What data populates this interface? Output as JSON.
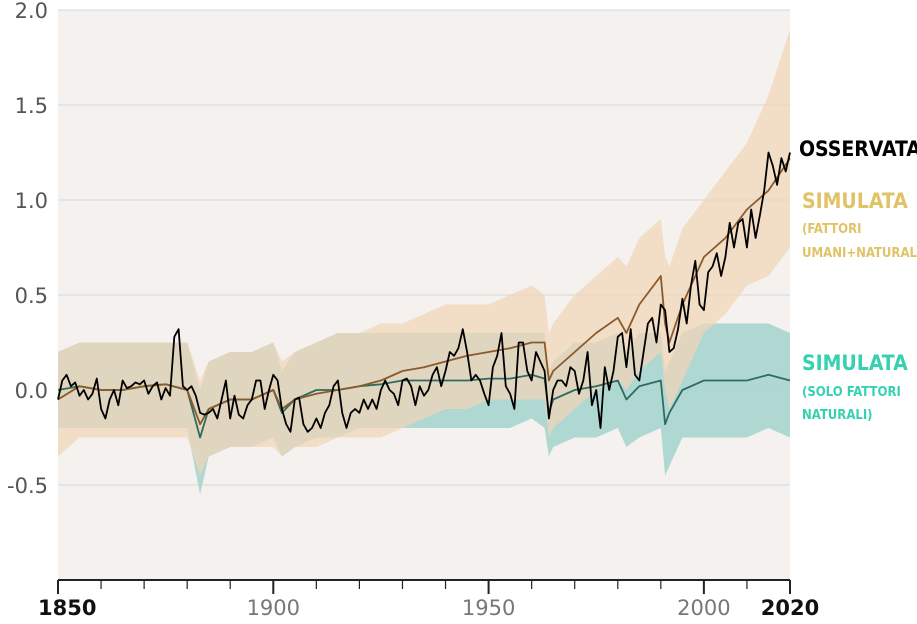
{
  "chart_data": {
    "type": "area",
    "xlim": [
      1850,
      2020
    ],
    "ylim": [
      -1.0,
      2.0
    ],
    "yticks": [
      2.0,
      1.5,
      1.0,
      0.5,
      0.0,
      -0.5
    ],
    "ytick_labels": [
      "2.0",
      "1.5",
      "1.0",
      "0.5",
      "0.0",
      "-0.5"
    ],
    "xticks": [
      1850,
      1900,
      1950,
      2000,
      2020
    ],
    "xtick_labels": [
      "1850",
      "1900",
      "1950",
      "2000",
      "2020"
    ],
    "grid": true,
    "legend_placement": "right, inline labels",
    "series": [
      {
        "name": "OSSERVATA",
        "color": "#000000",
        "x": [
          1850,
          1851,
          1852,
          1853,
          1854,
          1855,
          1856,
          1857,
          1858,
          1859,
          1860,
          1861,
          1862,
          1863,
          1864,
          1865,
          1866,
          1867,
          1868,
          1869,
          1870,
          1871,
          1872,
          1873,
          1874,
          1875,
          1876,
          1877,
          1878,
          1879,
          1880,
          1881,
          1882,
          1883,
          1884,
          1885,
          1886,
          1887,
          1888,
          1889,
          1890,
          1891,
          1892,
          1893,
          1894,
          1895,
          1896,
          1897,
          1898,
          1899,
          1900,
          1901,
          1902,
          1903,
          1904,
          1905,
          1906,
          1907,
          1908,
          1909,
          1910,
          1911,
          1912,
          1913,
          1914,
          1915,
          1916,
          1917,
          1918,
          1919,
          1920,
          1921,
          1922,
          1923,
          1924,
          1925,
          1926,
          1927,
          1928,
          1929,
          1930,
          1931,
          1932,
          1933,
          1934,
          1935,
          1936,
          1937,
          1938,
          1939,
          1940,
          1941,
          1942,
          1943,
          1944,
          1945,
          1946,
          1947,
          1948,
          1949,
          1950,
          1951,
          1952,
          1953,
          1954,
          1955,
          1956,
          1957,
          1958,
          1959,
          1960,
          1961,
          1962,
          1963,
          1964,
          1965,
          1966,
          1967,
          1968,
          1969,
          1970,
          1971,
          1972,
          1973,
          1974,
          1975,
          1976,
          1977,
          1978,
          1979,
          1980,
          1981,
          1982,
          1983,
          1984,
          1985,
          1986,
          1987,
          1988,
          1989,
          1990,
          1991,
          1992,
          1993,
          1994,
          1995,
          1996,
          1997,
          1998,
          1999,
          2000,
          2001,
          2002,
          2003,
          2004,
          2005,
          2006,
          2007,
          2008,
          2009,
          2010,
          2011,
          2012,
          2013,
          2014,
          2015,
          2016,
          2017,
          2018,
          2019,
          2020
        ],
        "y": [
          -0.05,
          0.05,
          0.08,
          0.02,
          0.04,
          -0.03,
          0.0,
          -0.05,
          -0.02,
          0.06,
          -0.1,
          -0.15,
          -0.05,
          0.0,
          -0.08,
          0.05,
          0.01,
          0.02,
          0.04,
          0.03,
          0.05,
          -0.02,
          0.02,
          0.04,
          -0.05,
          0.01,
          -0.03,
          0.28,
          0.32,
          0.02,
          0.0,
          0.02,
          -0.03,
          -0.12,
          -0.13,
          -0.12,
          -0.1,
          -0.15,
          -0.05,
          0.05,
          -0.15,
          -0.03,
          -0.13,
          -0.15,
          -0.08,
          -0.05,
          0.05,
          0.05,
          -0.1,
          0.0,
          0.08,
          0.05,
          -0.1,
          -0.18,
          -0.22,
          -0.05,
          -0.04,
          -0.18,
          -0.22,
          -0.2,
          -0.15,
          -0.2,
          -0.12,
          -0.08,
          0.02,
          0.05,
          -0.12,
          -0.2,
          -0.12,
          -0.1,
          -0.12,
          -0.05,
          -0.1,
          -0.05,
          -0.1,
          0.0,
          0.05,
          0.0,
          -0.02,
          -0.08,
          0.05,
          0.06,
          0.02,
          -0.08,
          0.02,
          -0.03,
          0.0,
          0.08,
          0.12,
          0.02,
          0.1,
          0.2,
          0.18,
          0.22,
          0.32,
          0.2,
          0.05,
          0.08,
          0.05,
          -0.02,
          -0.08,
          0.12,
          0.18,
          0.3,
          0.02,
          -0.02,
          -0.1,
          0.25,
          0.25,
          0.1,
          0.05,
          0.2,
          0.15,
          0.1,
          -0.15,
          0.0,
          0.05,
          0.05,
          0.02,
          0.12,
          0.1,
          -0.02,
          0.05,
          0.2,
          -0.08,
          0.0,
          -0.2,
          0.12,
          0.0,
          0.1,
          0.28,
          0.3,
          0.12,
          0.32,
          0.08,
          0.05,
          0.2,
          0.35,
          0.38,
          0.25,
          0.45,
          0.42,
          0.2,
          0.22,
          0.32,
          0.48,
          0.35,
          0.55,
          0.68,
          0.45,
          0.42,
          0.62,
          0.65,
          0.72,
          0.6,
          0.7,
          0.88,
          0.75,
          0.88,
          0.9,
          0.75,
          0.95,
          0.8,
          0.92,
          1.05,
          1.25,
          1.18,
          1.08,
          1.22,
          1.15,
          1.25
        ]
      },
      {
        "name": "SIMULATA (FATTORI UMANI+NATURALI)",
        "label_line1": "SIMULATA",
        "label_line2": "(FATTORI",
        "label_line3": "UMANI+NATURALI)",
        "line_color": "#8b5a2b",
        "band_color": "#f0d5b8",
        "label_color": "#e0c366",
        "x": [
          1850,
          1855,
          1860,
          1865,
          1870,
          1875,
          1880,
          1883,
          1885,
          1890,
          1895,
          1900,
          1902,
          1905,
          1910,
          1915,
          1920,
          1925,
          1930,
          1935,
          1940,
          1945,
          1950,
          1955,
          1960,
          1963,
          1964,
          1965,
          1970,
          1975,
          1980,
          1982,
          1985,
          1990,
          1991,
          1992,
          1995,
          2000,
          2005,
          2010,
          2015,
          2020
        ],
        "y": [
          -0.05,
          0.02,
          0.0,
          0.0,
          0.02,
          0.03,
          0.0,
          -0.18,
          -0.1,
          -0.05,
          -0.05,
          0.0,
          -0.1,
          -0.05,
          -0.02,
          0.0,
          0.02,
          0.05,
          0.1,
          0.12,
          0.15,
          0.18,
          0.2,
          0.22,
          0.25,
          0.25,
          0.05,
          0.1,
          0.2,
          0.3,
          0.38,
          0.3,
          0.45,
          0.6,
          0.35,
          0.25,
          0.45,
          0.7,
          0.8,
          0.95,
          1.05,
          1.22
        ],
        "upper": [
          0.2,
          0.25,
          0.25,
          0.25,
          0.25,
          0.25,
          0.25,
          0.05,
          0.15,
          0.2,
          0.2,
          0.25,
          0.15,
          0.2,
          0.25,
          0.3,
          0.3,
          0.35,
          0.35,
          0.4,
          0.45,
          0.45,
          0.45,
          0.5,
          0.55,
          0.5,
          0.3,
          0.35,
          0.5,
          0.6,
          0.7,
          0.65,
          0.8,
          0.9,
          0.7,
          0.65,
          0.85,
          1.0,
          1.15,
          1.3,
          1.55,
          1.9
        ],
        "lower": [
          -0.35,
          -0.25,
          -0.25,
          -0.25,
          -0.25,
          -0.25,
          -0.25,
          -0.45,
          -0.35,
          -0.3,
          -0.3,
          -0.3,
          -0.35,
          -0.3,
          -0.3,
          -0.25,
          -0.25,
          -0.25,
          -0.2,
          -0.15,
          -0.1,
          -0.1,
          -0.05,
          -0.05,
          -0.05,
          -0.05,
          -0.25,
          -0.2,
          -0.1,
          0.0,
          0.05,
          0.0,
          0.1,
          0.2,
          0.0,
          -0.1,
          0.05,
          0.3,
          0.4,
          0.55,
          0.6,
          0.75
        ]
      },
      {
        "name": "SIMULATA (SOLO FATTORI NATURALI)",
        "label_line1": "SIMULATA",
        "label_line2": "(SOLO FATTORI",
        "label_line3": "NATURALI)",
        "line_color": "#2f6b60",
        "band_color": "#a3d4ce",
        "label_color": "#36d1b0",
        "x": [
          1850,
          1855,
          1860,
          1865,
          1870,
          1875,
          1880,
          1883,
          1885,
          1890,
          1895,
          1900,
          1902,
          1905,
          1910,
          1915,
          1920,
          1925,
          1930,
          1935,
          1940,
          1945,
          1950,
          1955,
          1960,
          1963,
          1964,
          1965,
          1970,
          1975,
          1980,
          1982,
          1985,
          1990,
          1991,
          1992,
          1995,
          2000,
          2005,
          2010,
          2015,
          2020
        ],
        "y": [
          0.0,
          0.02,
          0.0,
          0.0,
          0.02,
          0.03,
          0.0,
          -0.25,
          -0.1,
          -0.05,
          -0.05,
          0.0,
          -0.12,
          -0.05,
          0.0,
          0.0,
          0.02,
          0.03,
          0.05,
          0.05,
          0.05,
          0.05,
          0.06,
          0.06,
          0.08,
          0.06,
          -0.12,
          -0.05,
          0.0,
          0.02,
          0.05,
          -0.05,
          0.02,
          0.05,
          -0.18,
          -0.12,
          0.0,
          0.05,
          0.05,
          0.05,
          0.08,
          0.05
        ],
        "upper": [
          0.2,
          0.25,
          0.25,
          0.25,
          0.25,
          0.25,
          0.25,
          0.0,
          0.15,
          0.2,
          0.2,
          0.25,
          0.1,
          0.2,
          0.25,
          0.3,
          0.3,
          0.3,
          0.3,
          0.3,
          0.3,
          0.3,
          0.3,
          0.3,
          0.3,
          0.3,
          0.1,
          0.15,
          0.25,
          0.25,
          0.3,
          0.2,
          0.3,
          0.3,
          0.1,
          0.15,
          0.3,
          0.35,
          0.35,
          0.35,
          0.35,
          0.3
        ],
        "lower": [
          -0.2,
          -0.2,
          -0.2,
          -0.2,
          -0.2,
          -0.2,
          -0.2,
          -0.55,
          -0.35,
          -0.3,
          -0.3,
          -0.25,
          -0.35,
          -0.3,
          -0.25,
          -0.25,
          -0.2,
          -0.2,
          -0.2,
          -0.2,
          -0.2,
          -0.2,
          -0.2,
          -0.2,
          -0.15,
          -0.2,
          -0.35,
          -0.3,
          -0.25,
          -0.25,
          -0.2,
          -0.3,
          -0.25,
          -0.2,
          -0.45,
          -0.4,
          -0.25,
          -0.25,
          -0.25,
          -0.25,
          -0.2,
          -0.25
        ]
      }
    ]
  }
}
